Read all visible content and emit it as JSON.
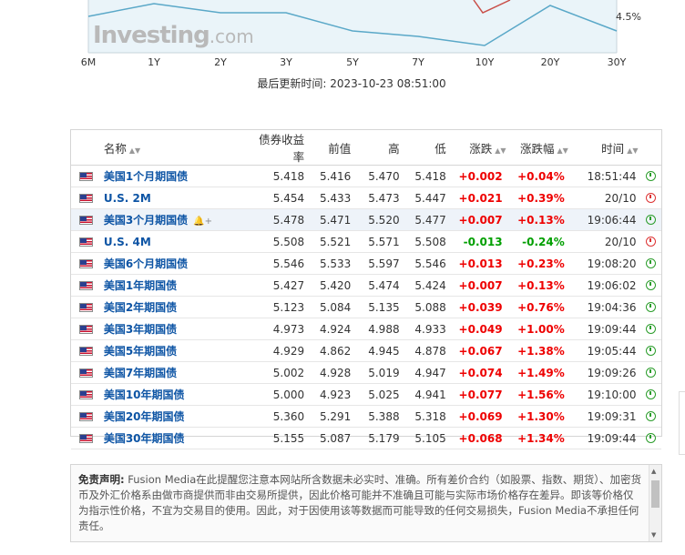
{
  "chart": {
    "x_labels": [
      "6M",
      "1Y",
      "2Y",
      "3Y",
      "5Y",
      "7Y",
      "10Y",
      "20Y",
      "30Y"
    ],
    "y_label": "4.5%",
    "watermark": "Investing",
    "watermark_suffix": ".com",
    "last_updated": "最后更新时间: 2023-10-23 08:51:00",
    "colors": {
      "current_line": "#5aa8c8",
      "previous_line": "#c9504a",
      "fill": "#eaf4f9"
    }
  },
  "table": {
    "headers": {
      "name": "名称",
      "yield": "债券收益率",
      "prev": "前值",
      "high": "高",
      "low": "低",
      "chg": "涨跌",
      "chg_pct": "涨跌幅",
      "time": "时间"
    },
    "rows": [
      {
        "name": "美国1个月期国债",
        "yield": "5.418",
        "prev": "5.416",
        "high": "5.470",
        "low": "5.418",
        "chg": "+0.002",
        "chg_pct": "+0.04%",
        "time": "18:51:44",
        "dir": "up",
        "status": "open"
      },
      {
        "name": "U.S. 2M",
        "yield": "5.454",
        "prev": "5.433",
        "high": "5.473",
        "low": "5.447",
        "chg": "+0.021",
        "chg_pct": "+0.39%",
        "time": "20/10",
        "dir": "up",
        "status": "closed"
      },
      {
        "name": "美国3个月期国债",
        "yield": "5.478",
        "prev": "5.471",
        "high": "5.520",
        "low": "5.477",
        "chg": "+0.007",
        "chg_pct": "+0.13%",
        "time": "19:06:44",
        "dir": "up",
        "status": "open"
      },
      {
        "name": "U.S. 4M",
        "yield": "5.508",
        "prev": "5.521",
        "high": "5.571",
        "low": "5.508",
        "chg": "-0.013",
        "chg_pct": "-0.24%",
        "time": "20/10",
        "dir": "down",
        "status": "closed"
      },
      {
        "name": "美国6个月期国债",
        "yield": "5.546",
        "prev": "5.533",
        "high": "5.597",
        "low": "5.546",
        "chg": "+0.013",
        "chg_pct": "+0.23%",
        "time": "19:08:20",
        "dir": "up",
        "status": "open"
      },
      {
        "name": "美国1年期国债",
        "yield": "5.427",
        "prev": "5.420",
        "high": "5.474",
        "low": "5.424",
        "chg": "+0.007",
        "chg_pct": "+0.13%",
        "time": "19:06:02",
        "dir": "up",
        "status": "open"
      },
      {
        "name": "美国2年期国债",
        "yield": "5.123",
        "prev": "5.084",
        "high": "5.135",
        "low": "5.088",
        "chg": "+0.039",
        "chg_pct": "+0.76%",
        "time": "19:04:36",
        "dir": "up",
        "status": "open"
      },
      {
        "name": "美国3年期国债",
        "yield": "4.973",
        "prev": "4.924",
        "high": "4.988",
        "low": "4.933",
        "chg": "+0.049",
        "chg_pct": "+1.00%",
        "time": "19:09:44",
        "dir": "up",
        "status": "open"
      },
      {
        "name": "美国5年期国债",
        "yield": "4.929",
        "prev": "4.862",
        "high": "4.945",
        "low": "4.878",
        "chg": "+0.067",
        "chg_pct": "+1.38%",
        "time": "19:05:44",
        "dir": "up",
        "status": "open"
      },
      {
        "name": "美国7年期国债",
        "yield": "5.002",
        "prev": "4.928",
        "high": "5.019",
        "low": "4.947",
        "chg": "+0.074",
        "chg_pct": "+1.49%",
        "time": "19:09:26",
        "dir": "up",
        "status": "open"
      },
      {
        "name": "美国10年期国债",
        "yield": "5.000",
        "prev": "4.923",
        "high": "5.025",
        "low": "4.941",
        "chg": "+0.077",
        "chg_pct": "+1.56%",
        "time": "19:10:00",
        "dir": "up",
        "status": "open"
      },
      {
        "name": "美国20年期国债",
        "yield": "5.360",
        "prev": "5.291",
        "high": "5.388",
        "low": "5.318",
        "chg": "+0.069",
        "chg_pct": "+1.30%",
        "time": "19:09:31",
        "dir": "up",
        "status": "open"
      },
      {
        "name": "美国30年期国债",
        "yield": "5.155",
        "prev": "5.087",
        "high": "5.179",
        "low": "5.105",
        "chg": "+0.068",
        "chg_pct": "+1.34%",
        "time": "19:09:44",
        "dir": "up",
        "status": "open"
      }
    ]
  },
  "disclaimer": {
    "label": "免责声明:",
    "text": " Fusion Media在此提醒您注意本网站所含数据未必实时、准确。所有差价合约（如股票、指数、期货）、加密货币及外汇价格系由做市商提供而非由交易所提供，因此价格可能并不准确且可能与实际市场价格存在差异。即该等价格仅为指示性价格，不宜为交易目的使用。因此，对于因使用该等数据而可能导致的任何交易损失，Fusion Media不承担任何责任。"
  }
}
